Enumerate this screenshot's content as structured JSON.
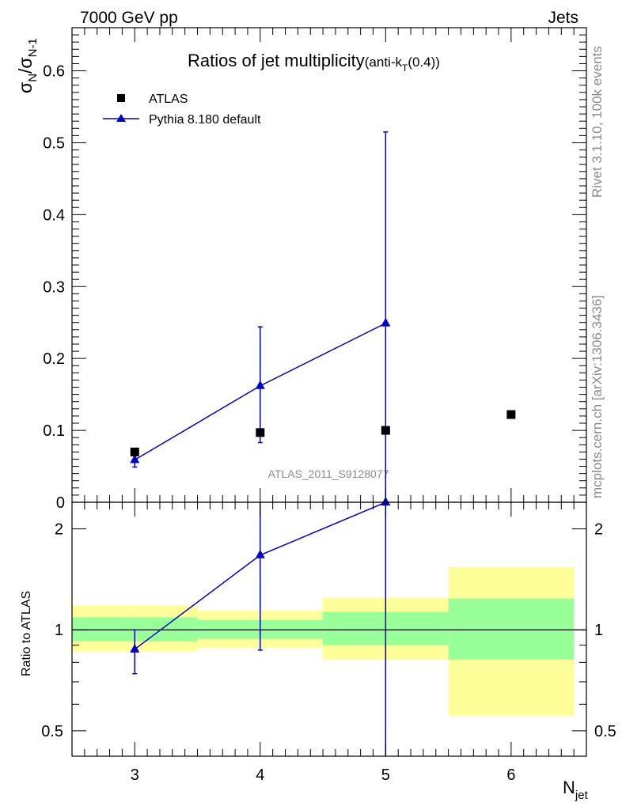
{
  "header": {
    "left": "7000 GeV pp",
    "right": "Jets"
  },
  "side_labels": {
    "rivet": "Rivet 3.1.10,  100k events",
    "mcplots": "mcplots.cern.ch [arXiv:1306.3436]"
  },
  "colors": {
    "atlas": "#000000",
    "pythia": "#0000cc",
    "band_outer": "#ffff99",
    "band_inner": "#99ff99"
  },
  "chart_data": [
    {
      "type": "scatter",
      "title": "Ratios of jet multiplicity",
      "title_suffix": "(anti-k",
      "title_sub": "T",
      "title_tail": "(0.4))",
      "ylabel_main": "σ",
      "ylabel_sub1": "N",
      "ylabel_slash": "/σ",
      "ylabel_sub2": "N-1",
      "watermark": "ATLAS_2011_S9128077",
      "xlim": [
        2.5,
        6.6
      ],
      "ylim": [
        0,
        0.66
      ],
      "yticks": [
        0,
        0.1,
        0.2,
        0.3,
        0.4,
        0.5,
        0.6
      ],
      "ytick_labels": [
        "0",
        "0.1",
        "0.2",
        "0.3",
        "0.4",
        "0.5",
        "0.6"
      ],
      "legend": [
        {
          "name": "ATLAS",
          "marker": "square"
        },
        {
          "name": "Pythia 8.180 default",
          "marker": "triangle"
        }
      ],
      "series": [
        {
          "name": "ATLAS",
          "x": [
            3,
            4,
            5,
            6
          ],
          "y": [
            0.07,
            0.097,
            0.1,
            0.122
          ]
        },
        {
          "name": "Pythia 8.180 default",
          "x": [
            3,
            4,
            5
          ],
          "y": [
            0.059,
            0.162,
            0.249
          ],
          "err_lo": [
            0.049,
            0.083,
            0.0
          ],
          "err_hi": [
            0.069,
            0.244,
            0.515
          ]
        }
      ]
    },
    {
      "type": "scatter",
      "ylabel": "Ratio to ATLAS",
      "xlabel_main": "N",
      "xlabel_sub": "jet",
      "scale": "log",
      "xlim": [
        2.5,
        6.6
      ],
      "ylim": [
        0.42,
        2.4
      ],
      "yticks": [
        0.5,
        1,
        2
      ],
      "ytick_labels": [
        "0.5",
        "1",
        "2"
      ],
      "xticks": [
        3,
        4,
        5,
        6
      ],
      "xtick_labels": [
        "3",
        "4",
        "5",
        "6"
      ],
      "bands": [
        {
          "x0": 2.5,
          "x1": 3.5,
          "outer": [
            0.865,
            1.185
          ],
          "inner": [
            0.925,
            1.09
          ]
        },
        {
          "x0": 3.5,
          "x1": 4.5,
          "outer": [
            0.885,
            1.14
          ],
          "inner": [
            0.94,
            1.07
          ]
        },
        {
          "x0": 4.5,
          "x1": 5.5,
          "outer": [
            0.815,
            1.25
          ],
          "inner": [
            0.9,
            1.13
          ]
        },
        {
          "x0": 5.5,
          "x1": 6.5,
          "outer": [
            0.555,
            1.54
          ],
          "inner": [
            0.815,
            1.24
          ]
        }
      ],
      "series": [
        {
          "name": "Pythia 8.180 default",
          "x": [
            3,
            4,
            5
          ],
          "y": [
            0.875,
            1.67,
            2.4
          ],
          "err_lo": [
            0.74,
            0.87,
            0.42
          ],
          "err_hi": [
            1.0,
            2.4,
            2.4
          ]
        }
      ]
    }
  ]
}
